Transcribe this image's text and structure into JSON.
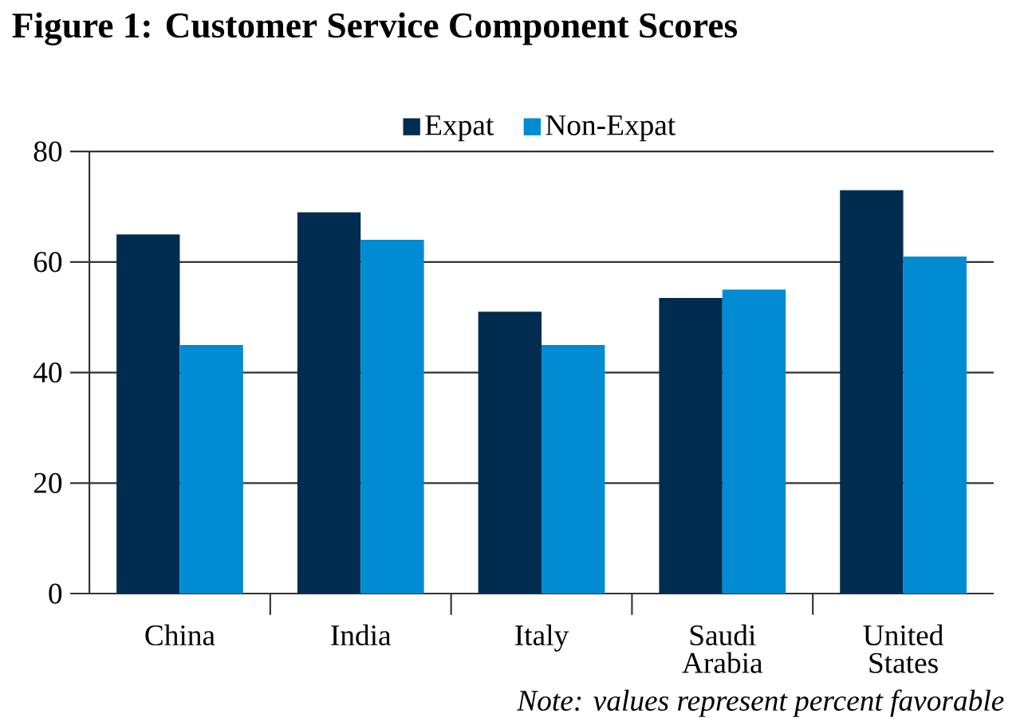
{
  "chart_data": {
    "type": "bar",
    "title": "Figure 1: Customer Service Component Scores",
    "categories": [
      "China",
      "India",
      "Italy",
      "Saudi Arabia",
      "United States"
    ],
    "series": [
      {
        "name": "Expat",
        "color": "#002d4f",
        "values": [
          65,
          69,
          51,
          53.5,
          73
        ]
      },
      {
        "name": "Non-Expat",
        "color": "#008bd3",
        "values": [
          45,
          64,
          45,
          55,
          61
        ]
      }
    ],
    "ylim": [
      0,
      80
    ],
    "yticks": [
      0,
      20,
      40,
      60,
      80
    ],
    "grid": "y",
    "legend": "top",
    "annotations": [
      "Note: values represent percent favorable"
    ]
  }
}
